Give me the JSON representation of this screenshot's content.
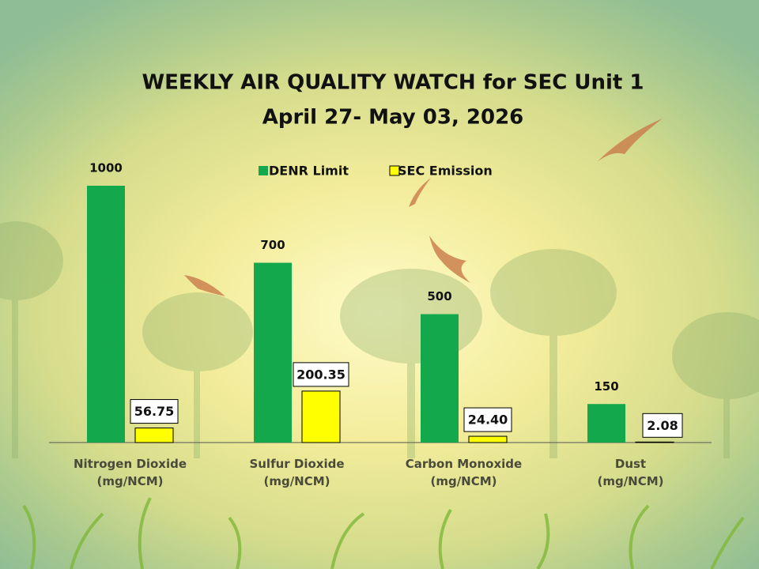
{
  "chart_data": {
    "type": "bar",
    "title": "WEEKLY AIR QUALITY WATCH for SEC Unit 1",
    "subtitle": "April 27- May 03, 2026",
    "categories": [
      "Nitrogen Dioxide\n(mg/NCM)",
      "Sulfur Dioxide\n(mg/NCM)",
      "Carbon Monoxide\n(mg/NCM)",
      "Dust\n(mg/NCM)"
    ],
    "series": [
      {
        "name": "DENR Limit",
        "color": "#13a84b",
        "values": [
          1000,
          700,
          500,
          150
        ]
      },
      {
        "name": "SEC Emission",
        "color": "#ffff00",
        "values": [
          56.75,
          200.35,
          24.4,
          2.08
        ],
        "value_labels": [
          "56.75",
          "200.35",
          "24.40",
          "2.08"
        ]
      }
    ],
    "legend": "top"
  }
}
